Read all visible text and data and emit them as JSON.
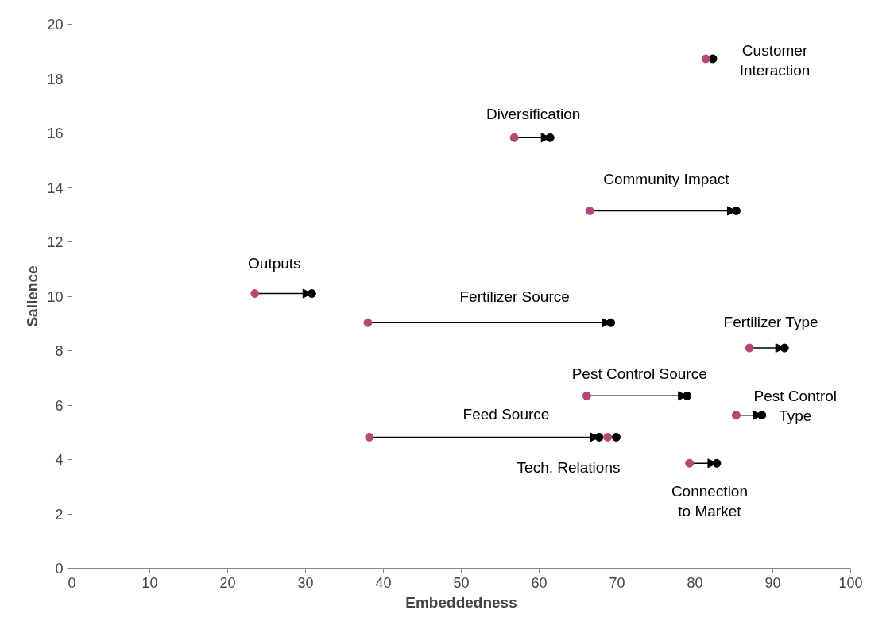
{
  "chart_data": {
    "type": "scatter",
    "xlabel": "Embeddedness",
    "ylabel": "Salience",
    "xlim": [
      0,
      100
    ],
    "xticks": [
      0,
      10,
      20,
      30,
      40,
      50,
      60,
      70,
      80,
      90,
      100
    ],
    "ylim": [
      0,
      20
    ],
    "yticks": [
      0,
      2,
      4,
      6,
      8,
      10,
      12,
      14,
      16,
      18,
      20
    ],
    "grid": false,
    "marker": "circle",
    "series": [
      {
        "color": "#b5477a",
        "x": [
          81.4,
          56.8,
          66.5,
          23.5,
          38.0,
          87.0,
          66.1,
          85.3,
          38.2,
          68.8,
          79.3
        ],
        "values": [
          18.73,
          15.83,
          13.14,
          10.1,
          9.03,
          8.1,
          6.34,
          5.63,
          4.82,
          4.82,
          3.86
        ]
      },
      {
        "color": "#000000",
        "x": [
          82.3,
          61.4,
          85.3,
          30.8,
          69.2,
          91.5,
          79.0,
          88.6,
          67.7,
          69.9,
          82.8
        ],
        "values": [
          18.73,
          15.83,
          13.14,
          10.1,
          9.03,
          8.1,
          6.34,
          5.63,
          4.82,
          4.82,
          3.86
        ]
      }
    ],
    "annotations": [
      {
        "text": "Customer\nInteraction",
        "x": 82.3,
        "y": 18.73
      },
      {
        "text": "Diversification",
        "x": 61.4,
        "y": 15.83
      },
      {
        "text": "Community Impact",
        "x": 85.3,
        "y": 13.14
      },
      {
        "text": "Outputs",
        "x": 30.8,
        "y": 10.1
      },
      {
        "text": "Fertilizer Source",
        "x": 69.2,
        "y": 9.03
      },
      {
        "text": "Fertilizer Type",
        "x": 91.5,
        "y": 8.1
      },
      {
        "text": "Pest Control Source",
        "x": 79.0,
        "y": 6.34
      },
      {
        "text": "Pest Control\nType",
        "x": 88.6,
        "y": 5.63
      },
      "Feed Source",
      {
        "text": "Tech. Relations",
        "x": 69.9,
        "y": 4.82
      },
      {
        "text": "Connection\nto Market",
        "x": 82.8,
        "y": 3.86
      }
    ]
  }
}
